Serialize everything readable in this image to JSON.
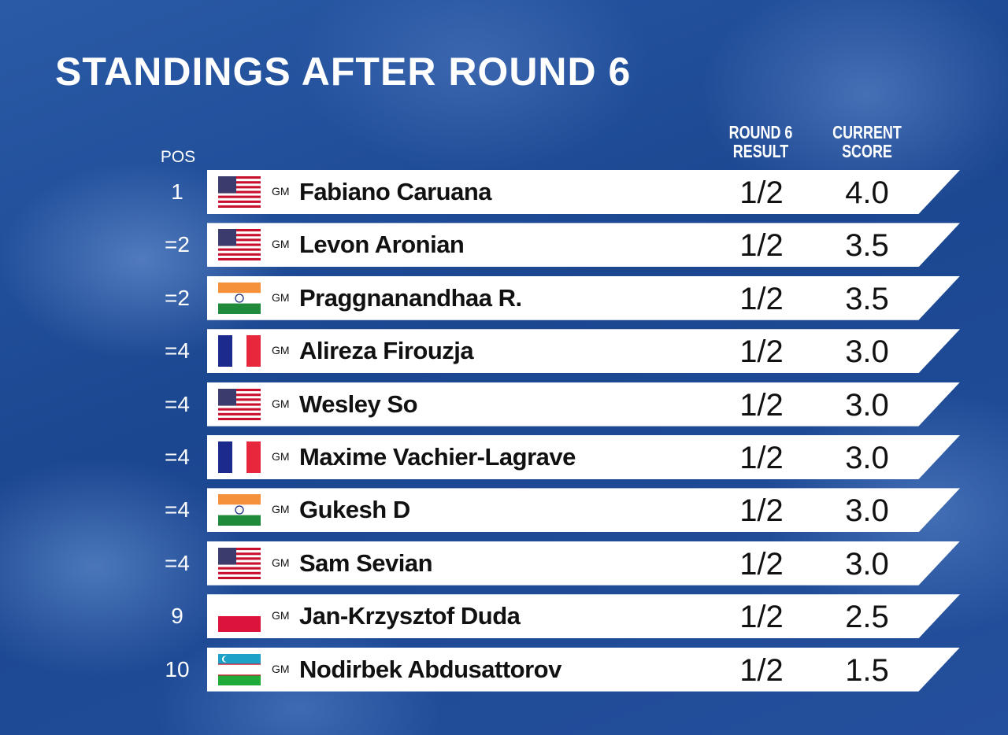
{
  "title": "STANDINGS AFTER ROUND 6",
  "headers": {
    "pos": "POS",
    "result": [
      "ROUND 6",
      "RESULT"
    ],
    "score": [
      "CURRENT",
      "SCORE"
    ]
  },
  "rows": [
    {
      "pos": "1",
      "title": "GM",
      "name": "Fabiano Caruana",
      "result": "1/2",
      "score": "4.0"
    },
    {
      "pos": "=2",
      "title": "GM",
      "name": "Levon Aronian",
      "result": "1/2",
      "score": "3.5"
    },
    {
      "pos": "=2",
      "title": "GM",
      "name": "Praggnanandhaa R.",
      "result": "1/2",
      "score": "3.5"
    },
    {
      "pos": "=4",
      "title": "GM",
      "name": "Alireza Firouzja",
      "result": "1/2",
      "score": "3.0"
    },
    {
      "pos": "=4",
      "title": "GM",
      "name": "Wesley So",
      "result": "1/2",
      "score": "3.0"
    },
    {
      "pos": "=4",
      "title": "GM",
      "name": "Maxime Vachier-Lagrave",
      "result": "1/2",
      "score": "3.0"
    },
    {
      "pos": "=4",
      "title": "GM",
      "name": "Gukesh D",
      "result": "1/2",
      "score": "3.0"
    },
    {
      "pos": "=4",
      "title": "GM",
      "name": "Sam Sevian",
      "result": "1/2",
      "score": "3.0"
    },
    {
      "pos": "9",
      "title": "GM",
      "name": "Jan-Krzysztof Duda",
      "result": "1/2",
      "score": "2.5"
    },
    {
      "pos": "10",
      "title": "GM",
      "name": "Nodirbek Abdusattorov",
      "result": "1/2",
      "score": "1.5"
    }
  ]
}
